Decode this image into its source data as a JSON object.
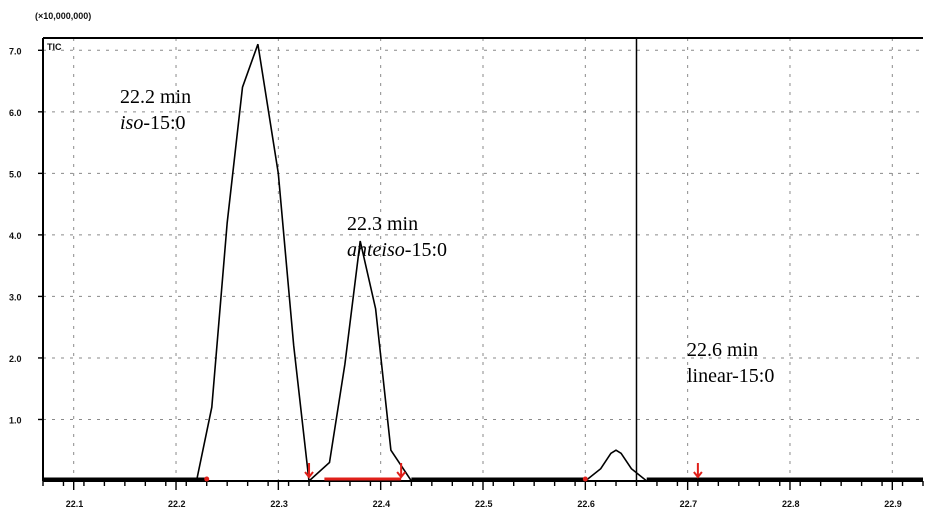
{
  "chart_data": {
    "type": "line",
    "title": "",
    "xlabel": "",
    "ylabel": "",
    "y_unit_label": "(×10,000,000)",
    "top_left_label": "TIC",
    "x_tick_labels": [
      "22.1",
      "22.2",
      "22.3",
      "22.4",
      "22.5",
      "22.6",
      "22.7",
      "22.8",
      "22.9"
    ],
    "y_tick_labels": [
      "1.0",
      "2.0",
      "3.0",
      "4.0",
      "5.0",
      "6.0",
      "7.0"
    ],
    "xlim": [
      22.07,
      22.93
    ],
    "ylim": [
      0,
      7.2
    ],
    "grid": true,
    "series": [
      {
        "x": [
          22.07,
          22.22,
          22.235,
          22.25,
          22.265,
          22.28,
          22.3,
          22.315,
          22.33,
          22.35,
          22.365,
          22.38,
          22.395,
          22.41,
          22.43,
          22.6,
          22.615,
          22.625,
          22.63,
          22.635,
          22.645,
          22.66,
          22.93
        ],
        "y": [
          0.0,
          0.0,
          1.2,
          4.2,
          6.4,
          7.1,
          5.0,
          2.2,
          0.0,
          0.3,
          1.9,
          3.9,
          2.8,
          0.5,
          0.0,
          0.0,
          0.2,
          0.45,
          0.5,
          0.45,
          0.2,
          0.0,
          0.0
        ]
      }
    ],
    "cursor_x": 22.65,
    "annotations": [
      {
        "time": "22.2 min",
        "name_prefix": "iso",
        "name_suffix": "-15:0"
      },
      {
        "time": "22.3 min",
        "name_prefix": "anteiso",
        "name_suffix": "-15:0"
      },
      {
        "time": "22.6 min",
        "name_prefix": "",
        "name_suffix": "linear-15:0"
      }
    ],
    "colors": {
      "trace": "#000000",
      "integration_marks": "#e0201a",
      "grid": "#8a8a8a"
    }
  }
}
